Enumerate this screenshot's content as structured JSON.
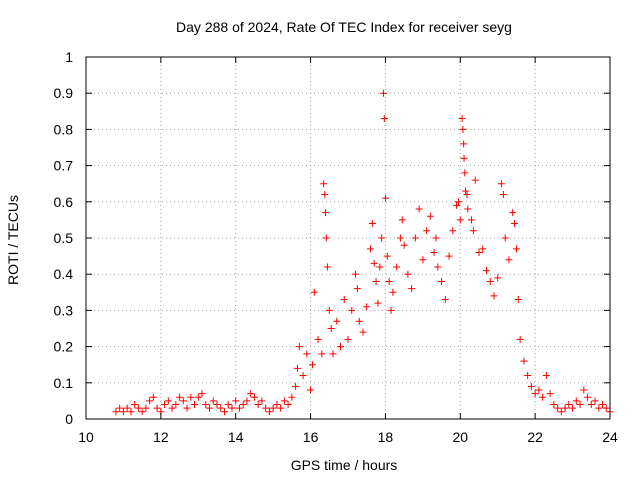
{
  "chart_data": {
    "type": "scatter",
    "title": "Day 288 of 2024, Rate Of TEC Index for receiver seyg",
    "xlabel": "GPS time / hours",
    "ylabel": "ROTI / TECUs",
    "xlim": [
      10,
      24
    ],
    "ylim": [
      0,
      1
    ],
    "xticks": [
      10,
      12,
      14,
      16,
      18,
      20,
      22,
      24
    ],
    "xtick_labels": [
      "10",
      "12",
      "14",
      "16",
      "18",
      "20",
      "22",
      "24"
    ],
    "yticks": [
      0,
      0.1,
      0.2,
      0.3,
      0.4,
      0.5,
      0.6,
      0.7,
      0.8,
      0.9,
      1
    ],
    "ytick_labels": [
      "0",
      "0.1",
      "0.2",
      "0.3",
      "0.4",
      "0.5",
      "0.6",
      "0.7",
      "0.8",
      "0.9",
      "1"
    ],
    "grid": true,
    "marker": "+",
    "color": "#ff0000",
    "series": [
      {
        "name": "ROTI",
        "points": [
          [
            10.8,
            0.02
          ],
          [
            10.9,
            0.03
          ],
          [
            11.0,
            0.02
          ],
          [
            11.1,
            0.03
          ],
          [
            11.2,
            0.02
          ],
          [
            11.3,
            0.04
          ],
          [
            11.4,
            0.03
          ],
          [
            11.5,
            0.02
          ],
          [
            11.6,
            0.03
          ],
          [
            11.7,
            0.05
          ],
          [
            11.8,
            0.06
          ],
          [
            11.9,
            0.03
          ],
          [
            12.0,
            0.02
          ],
          [
            12.1,
            0.04
          ],
          [
            12.2,
            0.05
          ],
          [
            12.3,
            0.03
          ],
          [
            12.4,
            0.04
          ],
          [
            12.5,
            0.06
          ],
          [
            12.6,
            0.05
          ],
          [
            12.7,
            0.03
          ],
          [
            12.8,
            0.06
          ],
          [
            12.9,
            0.04
          ],
          [
            13.0,
            0.06
          ],
          [
            13.1,
            0.07
          ],
          [
            13.2,
            0.04
          ],
          [
            13.3,
            0.03
          ],
          [
            13.4,
            0.05
          ],
          [
            13.5,
            0.04
          ],
          [
            13.6,
            0.03
          ],
          [
            13.7,
            0.02
          ],
          [
            13.8,
            0.04
          ],
          [
            13.9,
            0.03
          ],
          [
            14.0,
            0.05
          ],
          [
            14.1,
            0.03
          ],
          [
            14.2,
            0.04
          ],
          [
            14.3,
            0.05
          ],
          [
            14.4,
            0.07
          ],
          [
            14.5,
            0.06
          ],
          [
            14.6,
            0.04
          ],
          [
            14.7,
            0.05
          ],
          [
            14.8,
            0.03
          ],
          [
            14.9,
            0.02
          ],
          [
            15.0,
            0.03
          ],
          [
            15.1,
            0.04
          ],
          [
            15.2,
            0.03
          ],
          [
            15.3,
            0.05
          ],
          [
            15.4,
            0.04
          ],
          [
            15.5,
            0.06
          ],
          [
            15.6,
            0.09
          ],
          [
            15.65,
            0.14
          ],
          [
            15.7,
            0.2
          ],
          [
            15.8,
            0.12
          ],
          [
            15.9,
            0.18
          ],
          [
            16.0,
            0.08
          ],
          [
            16.05,
            0.15
          ],
          [
            16.1,
            0.35
          ],
          [
            16.2,
            0.22
          ],
          [
            16.3,
            0.18
          ],
          [
            16.35,
            0.65
          ],
          [
            16.38,
            0.62
          ],
          [
            16.4,
            0.57
          ],
          [
            16.42,
            0.5
          ],
          [
            16.45,
            0.42
          ],
          [
            16.5,
            0.3
          ],
          [
            16.55,
            0.25
          ],
          [
            16.6,
            0.18
          ],
          [
            16.7,
            0.27
          ],
          [
            16.8,
            0.2
          ],
          [
            16.9,
            0.33
          ],
          [
            17.0,
            0.22
          ],
          [
            17.1,
            0.3
          ],
          [
            17.2,
            0.4
          ],
          [
            17.25,
            0.36
          ],
          [
            17.3,
            0.27
          ],
          [
            17.4,
            0.24
          ],
          [
            17.5,
            0.31
          ],
          [
            17.6,
            0.47
          ],
          [
            17.65,
            0.54
          ],
          [
            17.7,
            0.43
          ],
          [
            17.75,
            0.38
          ],
          [
            17.8,
            0.32
          ],
          [
            17.85,
            0.42
          ],
          [
            17.9,
            0.5
          ],
          [
            17.95,
            0.9
          ],
          [
            17.97,
            0.83
          ],
          [
            18.0,
            0.61
          ],
          [
            18.05,
            0.45
          ],
          [
            18.1,
            0.38
          ],
          [
            18.15,
            0.3
          ],
          [
            18.2,
            0.35
          ],
          [
            18.3,
            0.42
          ],
          [
            18.4,
            0.5
          ],
          [
            18.45,
            0.55
          ],
          [
            18.5,
            0.48
          ],
          [
            18.6,
            0.4
          ],
          [
            18.7,
            0.36
          ],
          [
            18.8,
            0.5
          ],
          [
            18.9,
            0.58
          ],
          [
            19.0,
            0.44
          ],
          [
            19.1,
            0.52
          ],
          [
            19.2,
            0.56
          ],
          [
            19.3,
            0.46
          ],
          [
            19.35,
            0.5
          ],
          [
            19.4,
            0.42
          ],
          [
            19.5,
            0.38
          ],
          [
            19.6,
            0.33
          ],
          [
            19.7,
            0.45
          ],
          [
            19.8,
            0.52
          ],
          [
            19.9,
            0.59
          ],
          [
            19.95,
            0.6
          ],
          [
            20.0,
            0.55
          ],
          [
            20.05,
            0.83
          ],
          [
            20.07,
            0.8
          ],
          [
            20.09,
            0.76
          ],
          [
            20.1,
            0.72
          ],
          [
            20.12,
            0.68
          ],
          [
            20.14,
            0.63
          ],
          [
            20.18,
            0.62
          ],
          [
            20.2,
            0.58
          ],
          [
            20.3,
            0.55
          ],
          [
            20.35,
            0.52
          ],
          [
            20.4,
            0.66
          ],
          [
            20.5,
            0.46
          ],
          [
            20.6,
            0.47
          ],
          [
            20.7,
            0.41
          ],
          [
            20.8,
            0.38
          ],
          [
            20.9,
            0.34
          ],
          [
            21.0,
            0.39
          ],
          [
            21.1,
            0.65
          ],
          [
            21.15,
            0.62
          ],
          [
            21.2,
            0.5
          ],
          [
            21.3,
            0.44
          ],
          [
            21.4,
            0.57
          ],
          [
            21.45,
            0.54
          ],
          [
            21.5,
            0.47
          ],
          [
            21.55,
            0.33
          ],
          [
            21.6,
            0.22
          ],
          [
            21.7,
            0.16
          ],
          [
            21.8,
            0.12
          ],
          [
            21.9,
            0.09
          ],
          [
            22.0,
            0.07
          ],
          [
            22.1,
            0.08
          ],
          [
            22.2,
            0.06
          ],
          [
            22.3,
            0.12
          ],
          [
            22.4,
            0.07
          ],
          [
            22.5,
            0.04
          ],
          [
            22.6,
            0.03
          ],
          [
            22.7,
            0.02
          ],
          [
            22.8,
            0.03
          ],
          [
            22.9,
            0.04
          ],
          [
            23.0,
            0.03
          ],
          [
            23.1,
            0.05
          ],
          [
            23.2,
            0.04
          ],
          [
            23.3,
            0.08
          ],
          [
            23.4,
            0.06
          ],
          [
            23.5,
            0.04
          ],
          [
            23.6,
            0.05
          ],
          [
            23.7,
            0.03
          ],
          [
            23.8,
            0.04
          ],
          [
            23.9,
            0.03
          ],
          [
            24.0,
            0.02
          ]
        ]
      }
    ]
  }
}
